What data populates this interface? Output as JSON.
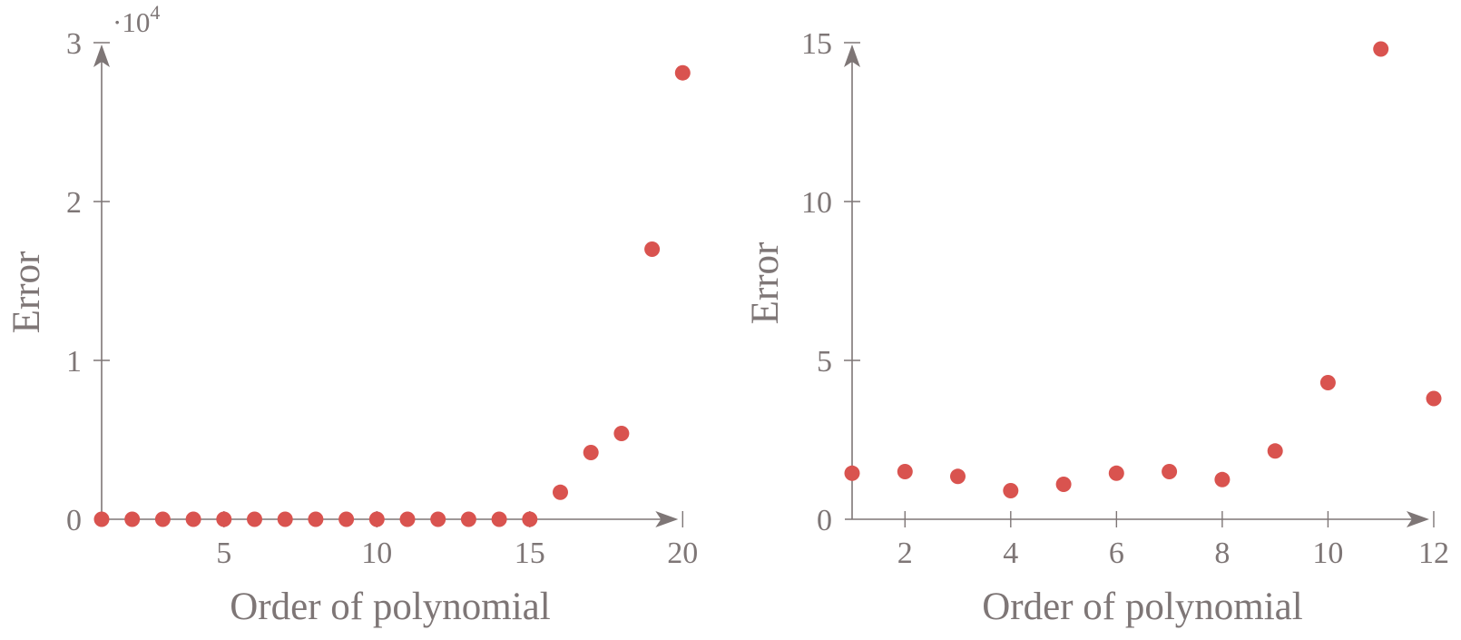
{
  "figure": {
    "colors": {
      "background": "#ffffff",
      "point": "#d9534f",
      "axis": "#7e7676",
      "text": "#7e7676"
    }
  },
  "chart_data": [
    {
      "type": "scatter",
      "title": "",
      "xlabel": "Order of polynomial",
      "ylabel": "Error",
      "y_axis_multiplier": {
        "base": "·10",
        "exponent": "4"
      },
      "x": [
        1,
        2,
        3,
        4,
        5,
        6,
        7,
        8,
        9,
        10,
        11,
        12,
        13,
        14,
        15,
        16,
        17,
        18,
        19,
        20
      ],
      "y": [
        0,
        0,
        0,
        0,
        0,
        0,
        0,
        0,
        0,
        0,
        0,
        0,
        0,
        0,
        0,
        1700,
        4200,
        5400,
        17000,
        28100
      ],
      "xlim": [
        1,
        20
      ],
      "ylim": [
        0,
        30000
      ],
      "x_ticks": [
        5,
        10,
        15,
        20
      ],
      "x_tick_labels": [
        "5",
        "10",
        "15",
        "20"
      ],
      "y_ticks": [
        0,
        10000,
        20000,
        30000
      ],
      "y_tick_labels": [
        "0",
        "1",
        "2",
        "3"
      ],
      "grid": false,
      "legend": null
    },
    {
      "type": "scatter",
      "title": "",
      "xlabel": "Order of polynomial",
      "ylabel": "Error",
      "y_axis_multiplier": null,
      "x": [
        1,
        2,
        3,
        4,
        5,
        6,
        7,
        8,
        9,
        10,
        11,
        12
      ],
      "y": [
        1.45,
        1.5,
        1.35,
        0.9,
        1.1,
        1.45,
        1.5,
        1.25,
        2.15,
        4.3,
        14.8,
        3.8
      ],
      "xlim": [
        1,
        12
      ],
      "ylim": [
        0,
        15
      ],
      "x_ticks": [
        2,
        4,
        6,
        8,
        10,
        12
      ],
      "x_tick_labels": [
        "2",
        "4",
        "6",
        "8",
        "10",
        "12"
      ],
      "y_ticks": [
        0,
        5,
        10,
        15
      ],
      "y_tick_labels": [
        "0",
        "5",
        "10",
        "15"
      ],
      "grid": false,
      "legend": null
    }
  ]
}
